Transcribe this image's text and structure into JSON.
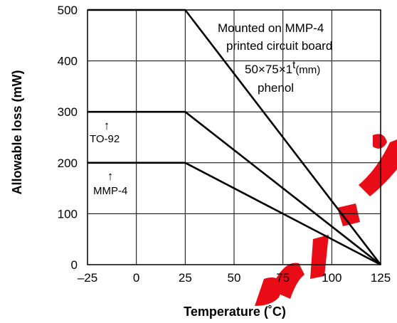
{
  "chart_data": {
    "type": "line",
    "xlabel": "Temperature (˚C)",
    "ylabel": "Allowable loss (mW)",
    "xlim": [
      -25,
      125
    ],
    "ylim": [
      0,
      500
    ],
    "x_ticks": [
      "–25",
      "0",
      "25",
      "50",
      "75",
      "100",
      "125"
    ],
    "y_ticks": [
      "0",
      "100",
      "200",
      "300",
      "400",
      "500"
    ],
    "grid": true,
    "series": [
      {
        "name": "Mounted on MMP-4 printed circuit board",
        "x": [
          -25,
          25,
          125
        ],
        "y": [
          500,
          500,
          0
        ]
      },
      {
        "name": "TO-92",
        "x": [
          -25,
          25,
          125
        ],
        "y": [
          300,
          300,
          0
        ]
      },
      {
        "name": "MMP-4",
        "x": [
          -25,
          25,
          125
        ],
        "y": [
          200,
          200,
          0
        ]
      }
    ],
    "annotations": {
      "board_line1": "Mounted on MMP-4",
      "board_line2": "printed circuit board",
      "board_dims": "50×75×1",
      "board_dims_sup": "t",
      "board_dims_unit": "(mm)",
      "board_material": "phenol",
      "to92_label": "TO-92",
      "mmp4_label": "MMP-4",
      "arrow_glyph": "↑"
    },
    "colors": {
      "lines": "#000000",
      "watermark": "#e8000a"
    }
  }
}
